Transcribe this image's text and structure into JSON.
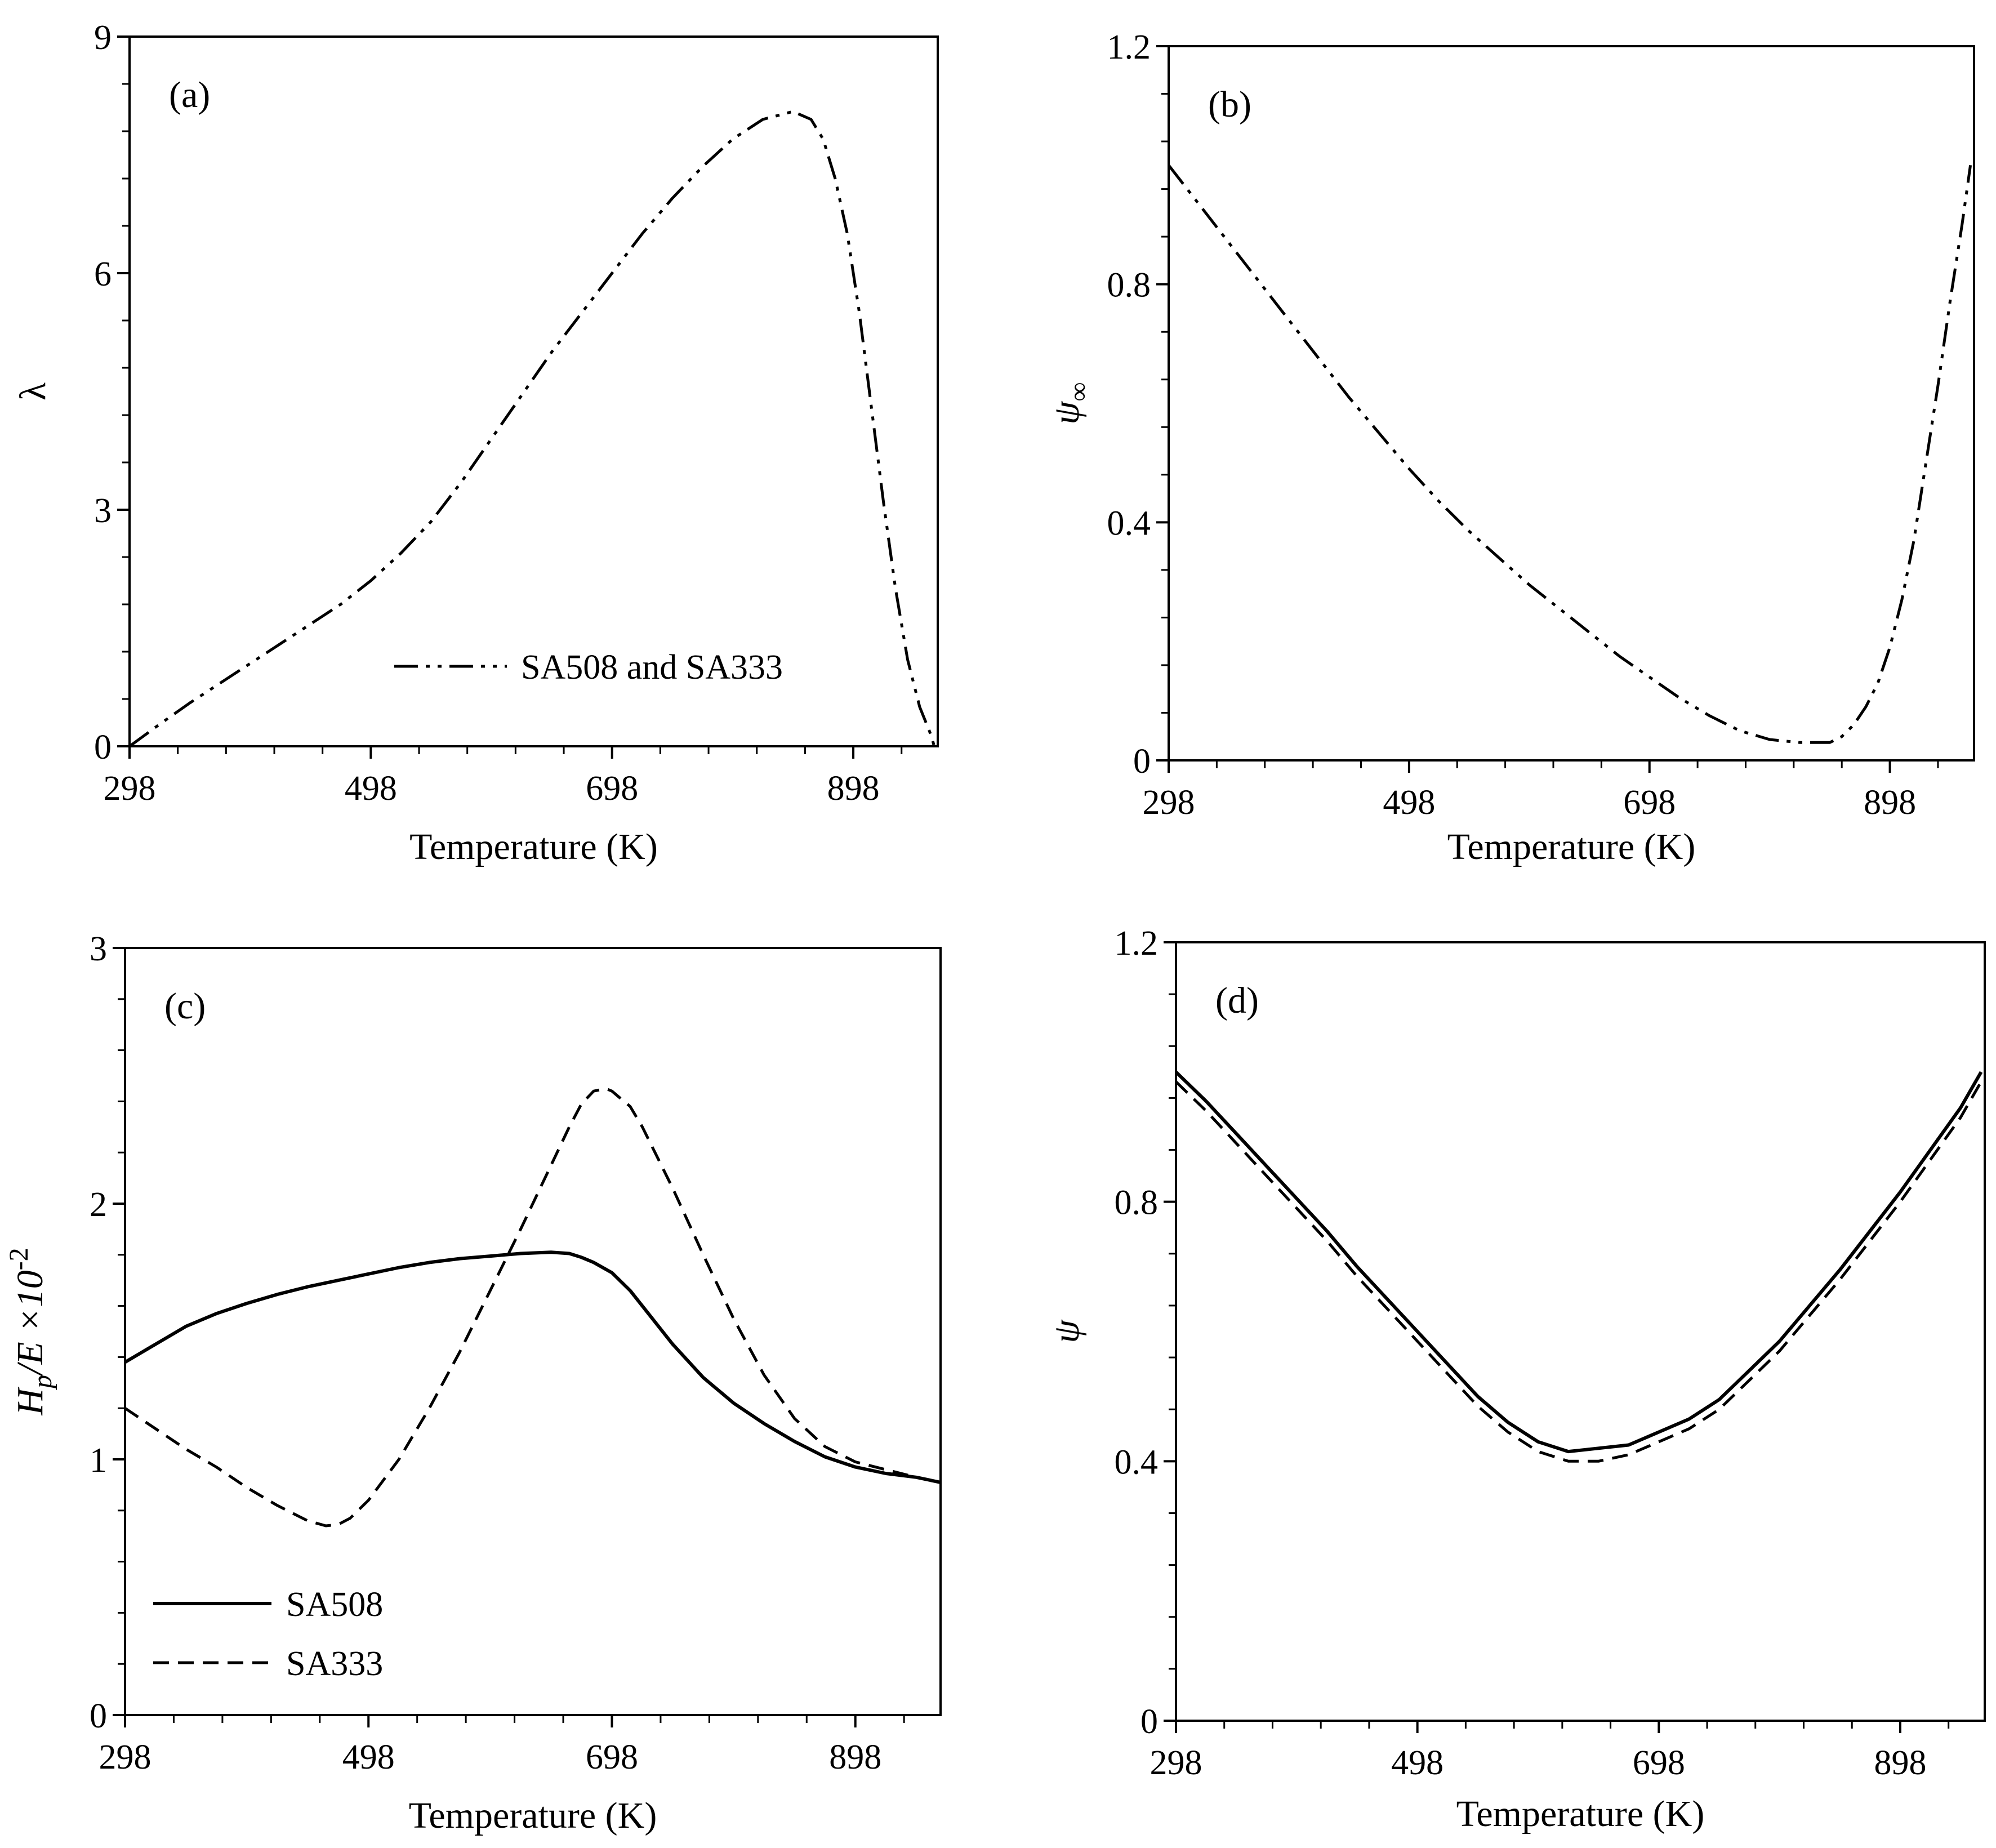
{
  "chart_data": [
    {
      "panel": "a",
      "type": "line",
      "panel_label": "(a)",
      "xlabel": "Temperature (K)",
      "ylabel": "λ",
      "xlim": [
        298,
        968
      ],
      "ylim": [
        0,
        9
      ],
      "xticks": [
        298,
        498,
        698,
        898
      ],
      "yticks": [
        0,
        3,
        6,
        9
      ],
      "legend": "bottom-right",
      "series": [
        {
          "name": "SA508 and SA333",
          "style": "dash-dot-dot",
          "x": [
            298,
            323,
            348,
            373,
            398,
            423,
            448,
            473,
            498,
            523,
            548,
            573,
            598,
            623,
            648,
            673,
            698,
            723,
            748,
            773,
            798,
            823,
            848,
            863,
            873,
            883,
            893,
            903,
            913,
            923,
            933,
            943,
            953,
            963,
            965
          ],
          "y": [
            0,
            0.28,
            0.55,
            0.8,
            1.05,
            1.3,
            1.55,
            1.8,
            2.1,
            2.45,
            2.85,
            3.35,
            3.9,
            4.45,
            5.0,
            5.5,
            6.0,
            6.5,
            6.95,
            7.35,
            7.7,
            7.95,
            8.05,
            7.95,
            7.7,
            7.2,
            6.5,
            5.5,
            4.3,
            3.1,
            2.0,
            1.1,
            0.5,
            0.12,
            0
          ]
        }
      ]
    },
    {
      "panel": "b",
      "type": "line",
      "panel_label": "(b)",
      "xlabel": "Temperature (K)",
      "ylabel": "ψ",
      "ylabel_sub": "∞",
      "xlim": [
        298,
        968
      ],
      "ylim": [
        0,
        1.2
      ],
      "xticks": [
        298,
        498,
        698,
        898
      ],
      "yticks": [
        "0",
        "0.4",
        "0.8",
        "1.2"
      ],
      "series": [
        {
          "name": "SA508 and SA333",
          "style": "dash-dot-dot",
          "x": [
            298,
            323,
            348,
            373,
            398,
            423,
            448,
            473,
            498,
            523,
            548,
            573,
            598,
            623,
            648,
            673,
            698,
            723,
            748,
            773,
            798,
            823,
            848,
            858,
            868,
            878,
            888,
            898,
            908,
            918,
            928,
            938,
            948,
            958,
            965
          ],
          "y": [
            1.0,
            0.935,
            0.87,
            0.805,
            0.74,
            0.675,
            0.61,
            0.55,
            0.49,
            0.435,
            0.385,
            0.34,
            0.295,
            0.255,
            0.215,
            0.175,
            0.14,
            0.105,
            0.075,
            0.05,
            0.035,
            0.03,
            0.03,
            0.04,
            0.06,
            0.09,
            0.13,
            0.19,
            0.27,
            0.37,
            0.5,
            0.63,
            0.77,
            0.9,
            1.0
          ]
        }
      ]
    },
    {
      "panel": "c",
      "type": "line",
      "panel_label": "(c)",
      "xlabel": "Temperature (K)",
      "ylabel": "Hp/E ×10-2",
      "ylabel_parts": {
        "h": "H",
        "sub": "p",
        "rest": "/E",
        "times": " ×10",
        "sup": "-2"
      },
      "xlim": [
        298,
        968
      ],
      "ylim": [
        0,
        3
      ],
      "xticks": [
        298,
        498,
        698,
        898
      ],
      "yticks": [
        0,
        1,
        2,
        3
      ],
      "legend": "bottom-left",
      "series": [
        {
          "name": "SA508",
          "style": "solid",
          "x": [
            298,
            323,
            348,
            373,
            398,
            423,
            448,
            473,
            498,
            523,
            548,
            573,
            598,
            623,
            648,
            663,
            673,
            683,
            698,
            713,
            723,
            748,
            773,
            798,
            823,
            848,
            873,
            898,
            923,
            948,
            968
          ],
          "y": [
            1.38,
            1.45,
            1.52,
            1.57,
            1.61,
            1.645,
            1.675,
            1.7,
            1.725,
            1.75,
            1.77,
            1.785,
            1.795,
            1.805,
            1.81,
            1.805,
            1.79,
            1.77,
            1.73,
            1.66,
            1.6,
            1.45,
            1.32,
            1.22,
            1.14,
            1.07,
            1.01,
            0.97,
            0.945,
            0.93,
            0.91
          ]
        },
        {
          "name": "SA333",
          "style": "dashed",
          "x": [
            298,
            323,
            348,
            373,
            398,
            423,
            448,
            463,
            473,
            483,
            498,
            523,
            548,
            573,
            598,
            623,
            648,
            663,
            673,
            683,
            693,
            698,
            713,
            723,
            748,
            773,
            798,
            823,
            848,
            873,
            898,
            923,
            948,
            968
          ],
          "y": [
            1.2,
            1.12,
            1.04,
            0.97,
            0.89,
            0.82,
            0.76,
            0.74,
            0.745,
            0.77,
            0.84,
            1.0,
            1.2,
            1.42,
            1.66,
            1.9,
            2.15,
            2.3,
            2.39,
            2.44,
            2.45,
            2.44,
            2.38,
            2.3,
            2.06,
            1.8,
            1.55,
            1.33,
            1.16,
            1.05,
            0.99,
            0.96,
            0.93,
            0.91
          ]
        }
      ]
    },
    {
      "panel": "d",
      "type": "line",
      "panel_label": "(d)",
      "xlabel": "Temperature (K)",
      "ylabel": "ψ",
      "xlim": [
        298,
        968
      ],
      "ylim": [
        0,
        1.2
      ],
      "xticks": [
        298,
        498,
        698,
        898
      ],
      "yticks": [
        "0",
        "0.4",
        "0.8",
        "1.2"
      ],
      "series": [
        {
          "name": "SA508",
          "style": "solid",
          "x": [
            298,
            323,
            348,
            373,
            398,
            423,
            448,
            473,
            498,
            523,
            548,
            573,
            598,
            623,
            648,
            673,
            698,
            723,
            748,
            773,
            798,
            823,
            848,
            873,
            898,
            923,
            948,
            965
          ],
          "y": [
            1.0,
            0.955,
            0.905,
            0.855,
            0.805,
            0.755,
            0.7,
            0.65,
            0.6,
            0.55,
            0.5,
            0.46,
            0.43,
            0.415,
            0.42,
            0.425,
            0.445,
            0.465,
            0.495,
            0.54,
            0.585,
            0.64,
            0.695,
            0.755,
            0.815,
            0.88,
            0.945,
            1.0
          ]
        },
        {
          "name": "SA333",
          "style": "dashed",
          "x": [
            298,
            323,
            348,
            373,
            398,
            423,
            448,
            473,
            498,
            523,
            548,
            573,
            598,
            623,
            648,
            673,
            698,
            723,
            748,
            773,
            798,
            823,
            848,
            873,
            898,
            923,
            948,
            965
          ],
          "y": [
            0.985,
            0.94,
            0.89,
            0.84,
            0.79,
            0.74,
            0.685,
            0.635,
            0.585,
            0.535,
            0.485,
            0.445,
            0.415,
            0.4,
            0.4,
            0.41,
            0.43,
            0.45,
            0.48,
            0.525,
            0.57,
            0.625,
            0.68,
            0.74,
            0.8,
            0.865,
            0.93,
            0.985
          ]
        }
      ]
    }
  ]
}
